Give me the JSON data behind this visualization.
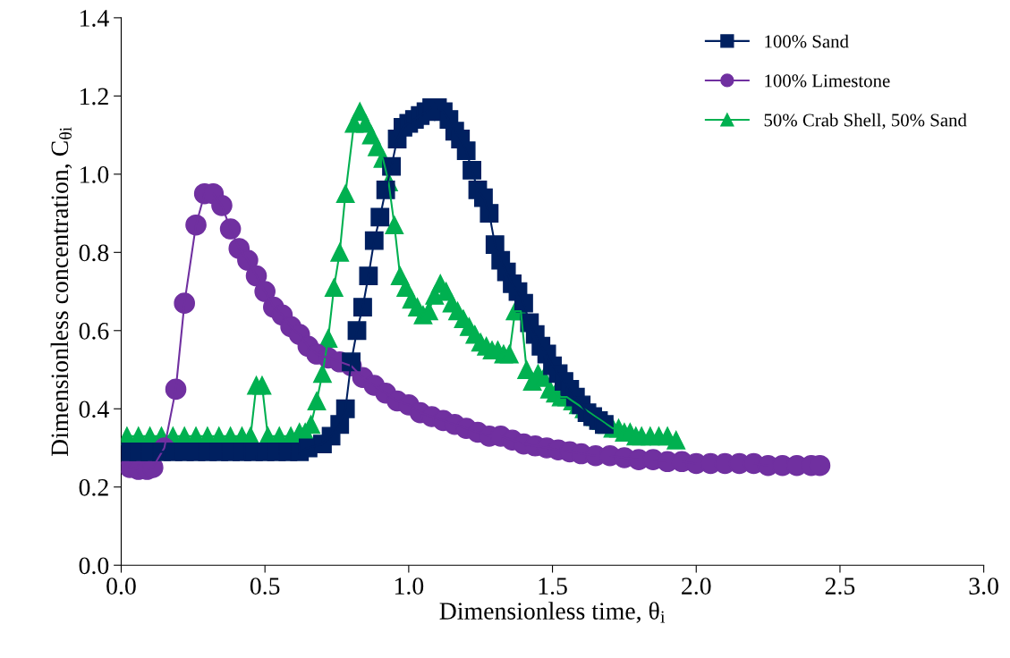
{
  "chart_data": {
    "type": "line",
    "xlabel": "Dimensionless time, θ$_{i}$",
    "ylabel": "Dimensionless concentration, C$_{θi}$",
    "xlim": [
      0,
      3
    ],
    "xticks": [
      {
        "value": 0,
        "label": "0.0"
      },
      0.5,
      {
        "value": 1,
        "label": "1.0"
      },
      1.5,
      {
        "value": 2,
        "label": "2.0"
      },
      2.5,
      {
        "value": 3,
        "label": "3.0"
      }
    ],
    "ylim": [
      0,
      1.4
    ],
    "yticks": [
      {
        "value": 0,
        "label": "0.0"
      },
      0.2,
      0.4,
      0.6,
      0.8,
      {
        "value": 1,
        "label": "1.0"
      },
      1.2,
      1.4
    ],
    "grid": false,
    "legend": "top right",
    "line_style": "solid",
    "series": [
      {
        "name": "100% Sand",
        "color": "#002060",
        "marker": "square",
        "x": [
          0.02,
          0.06,
          0.1,
          0.14,
          0.18,
          0.22,
          0.26,
          0.3,
          0.34,
          0.38,
          0.42,
          0.46,
          0.5,
          0.54,
          0.58,
          0.62,
          0.65,
          0.7,
          0.73,
          0.76,
          0.78,
          0.8,
          0.82,
          0.84,
          0.86,
          0.88,
          0.9,
          0.92,
          0.94,
          0.96,
          0.98,
          1.0,
          1.02,
          1.04,
          1.06,
          1.08,
          1.1,
          1.12,
          1.14,
          1.16,
          1.18,
          1.2,
          1.22,
          1.24,
          1.26,
          1.28,
          1.3,
          1.32,
          1.34,
          1.36,
          1.38,
          1.4,
          1.42,
          1.44,
          1.46,
          1.48,
          1.5,
          1.52,
          1.54,
          1.56,
          1.58,
          1.6,
          1.62,
          1.64,
          1.66,
          1.68
        ],
        "values": [
          0.29,
          0.29,
          0.29,
          0.29,
          0.29,
          0.29,
          0.29,
          0.29,
          0.29,
          0.29,
          0.29,
          0.29,
          0.29,
          0.29,
          0.29,
          0.29,
          0.3,
          0.31,
          0.33,
          0.36,
          0.4,
          0.52,
          0.6,
          0.66,
          0.74,
          0.83,
          0.89,
          0.96,
          1.02,
          1.09,
          1.12,
          1.13,
          1.14,
          1.15,
          1.16,
          1.17,
          1.17,
          1.16,
          1.14,
          1.11,
          1.09,
          1.06,
          1.01,
          0.96,
          0.94,
          0.9,
          0.82,
          0.78,
          0.75,
          0.72,
          0.7,
          0.67,
          0.62,
          0.59,
          0.56,
          0.54,
          0.51,
          0.49,
          0.47,
          0.45,
          0.43,
          0.41,
          0.39,
          0.38,
          0.37,
          0.36
        ]
      },
      {
        "name": "100% Limestone",
        "color": "#7030a0",
        "marker": "circle",
        "x": [
          0.03,
          0.06,
          0.09,
          0.11,
          0.15,
          0.19,
          0.22,
          0.26,
          0.29,
          0.32,
          0.35,
          0.38,
          0.41,
          0.44,
          0.47,
          0.5,
          0.53,
          0.56,
          0.59,
          0.62,
          0.65,
          0.68,
          0.72,
          0.76,
          0.8,
          0.84,
          0.88,
          0.92,
          0.96,
          1.0,
          1.04,
          1.08,
          1.12,
          1.16,
          1.2,
          1.24,
          1.28,
          1.32,
          1.36,
          1.4,
          1.44,
          1.48,
          1.52,
          1.56,
          1.6,
          1.65,
          1.7,
          1.75,
          1.8,
          1.85,
          1.9,
          1.95,
          2.0,
          2.05,
          2.1,
          2.15,
          2.2,
          2.25,
          2.3,
          2.35,
          2.4,
          2.43
        ],
        "values": [
          0.25,
          0.245,
          0.245,
          0.25,
          0.3,
          0.45,
          0.67,
          0.87,
          0.95,
          0.95,
          0.92,
          0.86,
          0.81,
          0.78,
          0.74,
          0.7,
          0.66,
          0.64,
          0.61,
          0.59,
          0.56,
          0.54,
          0.53,
          0.52,
          0.51,
          0.48,
          0.46,
          0.44,
          0.42,
          0.41,
          0.39,
          0.38,
          0.37,
          0.36,
          0.35,
          0.34,
          0.33,
          0.33,
          0.32,
          0.31,
          0.305,
          0.3,
          0.295,
          0.29,
          0.285,
          0.28,
          0.28,
          0.275,
          0.27,
          0.27,
          0.265,
          0.265,
          0.26,
          0.26,
          0.26,
          0.26,
          0.26,
          0.255,
          0.255,
          0.255,
          0.255,
          0.255
        ]
      },
      {
        "name": "50% Crab Shell, 50% Sand",
        "color": "#00b050",
        "marker": "triangle",
        "x": [
          0.02,
          0.06,
          0.1,
          0.14,
          0.18,
          0.22,
          0.26,
          0.3,
          0.34,
          0.38,
          0.42,
          0.45,
          0.47,
          0.49,
          0.51,
          0.55,
          0.59,
          0.62,
          0.64,
          0.66,
          0.68,
          0.7,
          0.72,
          0.74,
          0.76,
          0.78,
          0.81,
          0.83,
          0.85,
          0.87,
          0.89,
          0.91,
          0.93,
          0.95,
          0.97,
          0.99,
          1.01,
          1.03,
          1.05,
          1.07,
          1.09,
          1.11,
          1.13,
          1.15,
          1.17,
          1.19,
          1.21,
          1.23,
          1.25,
          1.27,
          1.29,
          1.31,
          1.33,
          1.35,
          1.37,
          1.39,
          1.41,
          1.43,
          1.45,
          1.47,
          1.49,
          1.51,
          1.53,
          1.55,
          1.57,
          1.59,
          1.61,
          1.63,
          1.65,
          1.67,
          1.69,
          1.71,
          1.73,
          1.75,
          1.77,
          1.79,
          1.81,
          1.84,
          1.87,
          1.9,
          1.93
        ],
        "values": [
          0.33,
          0.33,
          0.33,
          0.33,
          0.33,
          0.33,
          0.33,
          0.33,
          0.33,
          0.33,
          0.33,
          0.33,
          0.46,
          0.46,
          0.33,
          0.33,
          0.33,
          0.34,
          0.34,
          0.36,
          0.42,
          0.49,
          0.58,
          0.71,
          0.8,
          0.95,
          1.13,
          1.16,
          1.13,
          1.1,
          1.07,
          1.04,
          0.98,
          0.87,
          0.74,
          0.71,
          0.68,
          0.66,
          0.64,
          0.65,
          0.69,
          0.72,
          0.7,
          0.67,
          0.65,
          0.63,
          0.61,
          0.59,
          0.57,
          0.56,
          0.55,
          0.55,
          0.54,
          0.54,
          0.65,
          0.65,
          0.5,
          0.47,
          0.49,
          0.48,
          0.45,
          0.44,
          0.43,
          0.43,
          0.42,
          0.41,
          0.4,
          0.39,
          0.38,
          0.37,
          0.36,
          0.35,
          0.35,
          0.34,
          0.34,
          0.33,
          0.33,
          0.33,
          0.33,
          0.33,
          0.32
        ]
      }
    ]
  }
}
